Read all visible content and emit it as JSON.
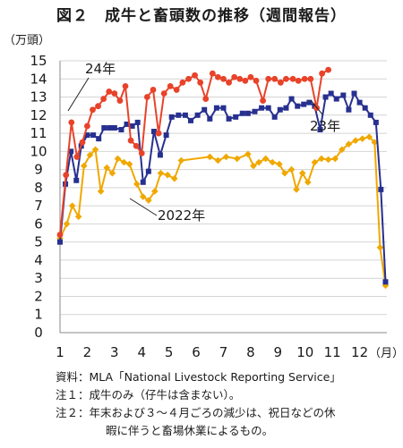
{
  "title": "図２　成牛と畜頭数の推移（週間報告）",
  "notes": {
    "source": "資料：MLA「National Livestock Reporting Service」",
    "note1": "注１：成牛のみ（仔牛は含まない）。",
    "note2_line1": "注２：年末および３～４月ごろの減少は、祝日などの休",
    "note2_line2": "暇に伴うと畜場休業によるもの。"
  },
  "chart_data": {
    "type": "line",
    "ylabel": "（万頭）",
    "xlabel": "（月）",
    "ylim": [
      0,
      15
    ],
    "yticks": [
      0,
      1,
      2,
      3,
      4,
      5,
      6,
      7,
      8,
      9,
      10,
      11,
      12,
      13,
      14,
      15
    ],
    "xlim": [
      1,
      13
    ],
    "xticks": [
      "1",
      "2",
      "3",
      "4",
      "5",
      "6",
      "7",
      "8",
      "9",
      "10",
      "11",
      "12"
    ],
    "grid": "horizontal",
    "series": [
      {
        "name": "2022年",
        "color": "#f0a800",
        "marker": "diamond",
        "points": [
          [
            1.0,
            5.2
          ],
          [
            1.25,
            6.0
          ],
          [
            1.45,
            7.0
          ],
          [
            1.68,
            6.4
          ],
          [
            1.88,
            9.2
          ],
          [
            2.1,
            9.8
          ],
          [
            2.3,
            10.1
          ],
          [
            2.5,
            7.8
          ],
          [
            2.72,
            9.1
          ],
          [
            2.92,
            8.8
          ],
          [
            3.12,
            9.6
          ],
          [
            3.35,
            9.4
          ],
          [
            3.55,
            9.3
          ],
          [
            3.82,
            8.2
          ],
          [
            4.05,
            7.5
          ],
          [
            4.25,
            7.3
          ],
          [
            4.48,
            7.8
          ],
          [
            4.7,
            8.8
          ],
          [
            4.95,
            8.7
          ],
          [
            5.2,
            8.5
          ],
          [
            5.45,
            9.5
          ],
          [
            6.5,
            9.7
          ],
          [
            6.8,
            9.5
          ],
          [
            7.1,
            9.7
          ],
          [
            7.5,
            9.6
          ],
          [
            7.9,
            9.85
          ],
          [
            8.1,
            9.2
          ],
          [
            8.3,
            9.4
          ],
          [
            8.55,
            9.6
          ],
          [
            8.8,
            9.4
          ],
          [
            9.05,
            9.3
          ],
          [
            9.25,
            8.8
          ],
          [
            9.5,
            9.0
          ],
          [
            9.68,
            7.9
          ],
          [
            9.9,
            8.8
          ],
          [
            10.1,
            8.3
          ],
          [
            10.35,
            9.4
          ],
          [
            10.6,
            9.6
          ],
          [
            10.85,
            9.55
          ],
          [
            11.1,
            9.6
          ],
          [
            11.35,
            10.1
          ],
          [
            11.6,
            10.4
          ],
          [
            11.85,
            10.6
          ],
          [
            12.1,
            10.7
          ],
          [
            12.35,
            10.8
          ],
          [
            12.55,
            10.5
          ],
          [
            12.75,
            4.7
          ],
          [
            12.95,
            2.6
          ]
        ]
      },
      {
        "name": "23年",
        "color": "#27308f",
        "marker": "square",
        "points": [
          [
            1.0,
            5.0
          ],
          [
            1.2,
            8.2
          ],
          [
            1.4,
            10.0
          ],
          [
            1.6,
            8.4
          ],
          [
            1.78,
            10.3
          ],
          [
            2.0,
            10.9
          ],
          [
            2.22,
            10.9
          ],
          [
            2.42,
            10.7
          ],
          [
            2.62,
            11.3
          ],
          [
            2.82,
            11.3
          ],
          [
            3.0,
            11.3
          ],
          [
            3.25,
            11.2
          ],
          [
            3.45,
            11.5
          ],
          [
            3.65,
            11.4
          ],
          [
            3.85,
            11.6
          ],
          [
            4.05,
            8.3
          ],
          [
            4.25,
            8.9
          ],
          [
            4.45,
            11.1
          ],
          [
            4.68,
            9.8
          ],
          [
            4.9,
            10.9
          ],
          [
            5.1,
            11.9
          ],
          [
            5.35,
            12.0
          ],
          [
            5.6,
            12.0
          ],
          [
            5.8,
            11.7
          ],
          [
            6.05,
            12.0
          ],
          [
            6.3,
            12.3
          ],
          [
            6.5,
            11.8
          ],
          [
            6.75,
            12.4
          ],
          [
            7.0,
            12.4
          ],
          [
            7.2,
            11.8
          ],
          [
            7.45,
            11.9
          ],
          [
            7.7,
            12.1
          ],
          [
            7.9,
            12.1
          ],
          [
            8.15,
            12.2
          ],
          [
            8.4,
            12.4
          ],
          [
            8.65,
            12.4
          ],
          [
            8.88,
            11.9
          ],
          [
            9.08,
            12.3
          ],
          [
            9.3,
            12.4
          ],
          [
            9.5,
            12.9
          ],
          [
            9.72,
            12.5
          ],
          [
            9.95,
            12.6
          ],
          [
            10.15,
            12.7
          ],
          [
            10.35,
            12.5
          ],
          [
            10.55,
            11.2
          ],
          [
            10.75,
            13.0
          ],
          [
            10.95,
            13.2
          ],
          [
            11.15,
            12.9
          ],
          [
            11.4,
            13.1
          ],
          [
            11.6,
            12.3
          ],
          [
            11.8,
            13.2
          ],
          [
            12.0,
            12.7
          ],
          [
            12.2,
            12.4
          ],
          [
            12.4,
            12.0
          ],
          [
            12.6,
            11.6
          ],
          [
            12.78,
            7.9
          ],
          [
            12.95,
            2.8
          ]
        ]
      },
      {
        "name": "24年",
        "color": "#e8432a",
        "marker": "circle",
        "points": [
          [
            1.0,
            5.4
          ],
          [
            1.22,
            8.7
          ],
          [
            1.42,
            11.6
          ],
          [
            1.62,
            9.7
          ],
          [
            1.82,
            10.5
          ],
          [
            2.0,
            11.4
          ],
          [
            2.2,
            12.3
          ],
          [
            2.4,
            12.5
          ],
          [
            2.6,
            12.9
          ],
          [
            2.8,
            13.3
          ],
          [
            3.0,
            13.2
          ],
          [
            3.2,
            12.8
          ],
          [
            3.4,
            13.6
          ],
          [
            3.6,
            10.6
          ],
          [
            3.8,
            10.3
          ],
          [
            4.0,
            9.9
          ],
          [
            4.2,
            13.0
          ],
          [
            4.42,
            13.4
          ],
          [
            4.62,
            11.0
          ],
          [
            4.82,
            13.2
          ],
          [
            5.05,
            13.6
          ],
          [
            5.28,
            13.4
          ],
          [
            5.5,
            13.8
          ],
          [
            5.72,
            14.0
          ],
          [
            5.95,
            14.2
          ],
          [
            6.15,
            13.8
          ],
          [
            6.35,
            12.9
          ],
          [
            6.6,
            14.3
          ],
          [
            6.8,
            14.1
          ],
          [
            7.0,
            14.0
          ],
          [
            7.2,
            13.8
          ],
          [
            7.4,
            14.1
          ],
          [
            7.6,
            14.0
          ],
          [
            7.8,
            13.9
          ],
          [
            8.0,
            14.1
          ],
          [
            8.2,
            13.9
          ],
          [
            8.45,
            12.8
          ],
          [
            8.65,
            14.0
          ],
          [
            8.88,
            14.0
          ],
          [
            9.1,
            13.8
          ],
          [
            9.3,
            14.0
          ],
          [
            9.55,
            14.0
          ],
          [
            9.75,
            13.9
          ],
          [
            9.98,
            14.0
          ],
          [
            10.2,
            14.0
          ],
          [
            10.42,
            12.4
          ],
          [
            10.62,
            14.3
          ],
          [
            10.85,
            14.5
          ]
        ]
      }
    ]
  }
}
